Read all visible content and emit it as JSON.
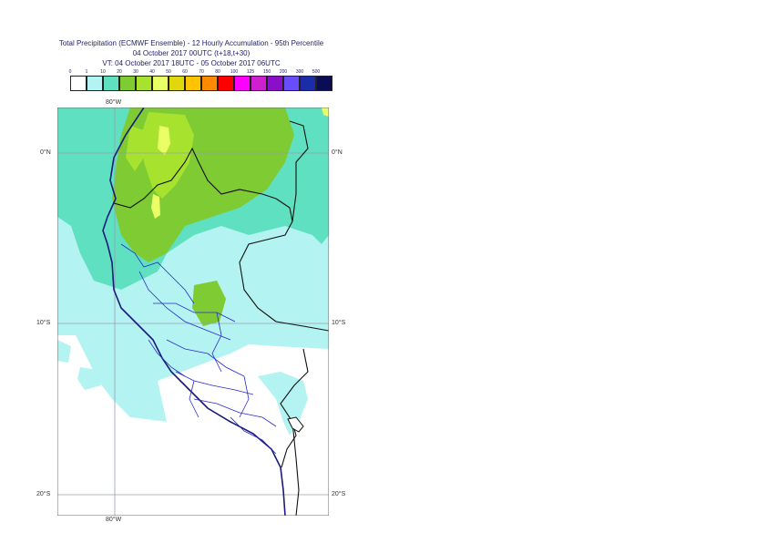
{
  "title": {
    "line1": "Total Precipitation (ECMWF Ensemble) - 12 Hourly Accumulation - 95th Percentile",
    "line2": "04 October 2017 00UTC (t+18,t+30)",
    "line3": "VT: 04 October 2017 18UTC - 05 October 2017 06UTC"
  },
  "scale": {
    "labels": [
      "0",
      "1",
      "10",
      "20",
      "30",
      "40",
      "50",
      "60",
      "70",
      "80",
      "100",
      "125",
      "150",
      "200",
      "300",
      "500"
    ],
    "colors": [
      "#ffffff",
      "#b3f3f1",
      "#5fe0c0",
      "#7ecb33",
      "#a6e22e",
      "#eaff66",
      "#e0d80c",
      "#ffc400",
      "#ff8a00",
      "#ff0000",
      "#ff00ff",
      "#cf20cf",
      "#8a10c8",
      "#6a4cff",
      "#1c2ca8",
      "#0c0c55"
    ]
  },
  "axes": {
    "top_lon": "80°W",
    "bottom_lon": "80°W",
    "lat_left": [
      "0°N",
      "10°S",
      "20°S"
    ],
    "lat_right": [
      "0°N",
      "10°S",
      "20°S"
    ]
  }
}
